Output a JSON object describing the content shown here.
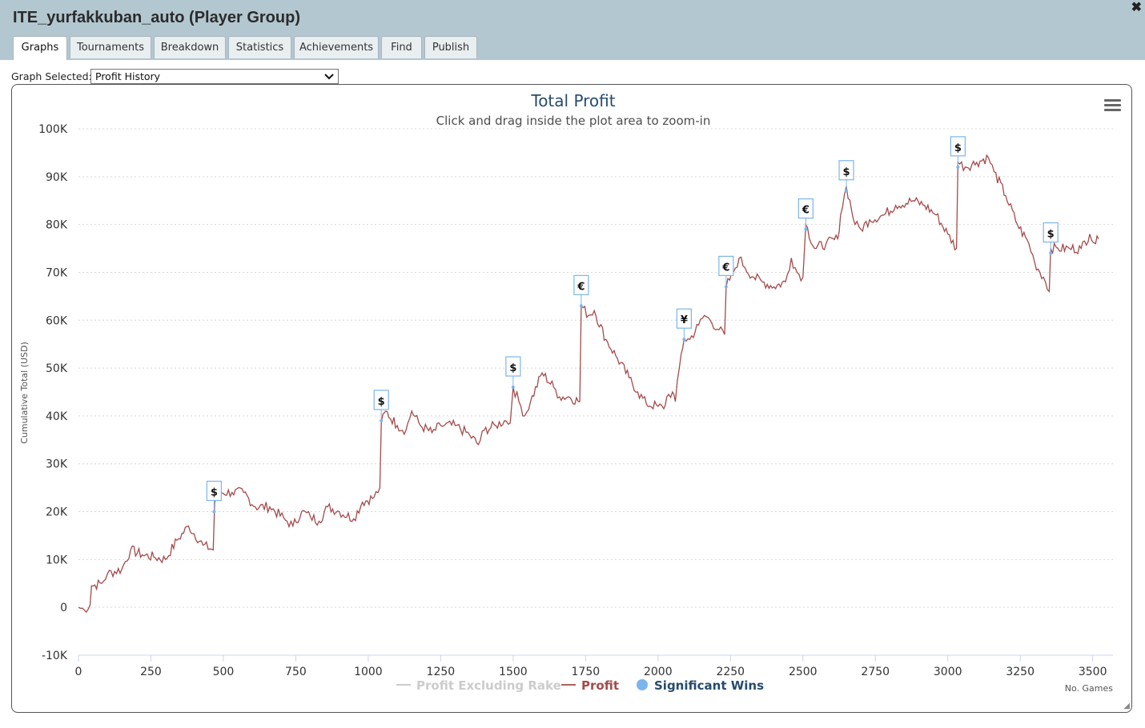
{
  "window": {
    "title": "ITE_yurfakkuban_auto (Player Group)",
    "close_symbol": "✖"
  },
  "tabs": [
    {
      "label": "Graphs",
      "active": true
    },
    {
      "label": "Tournaments"
    },
    {
      "label": "Breakdown"
    },
    {
      "label": "Statistics"
    },
    {
      "label": "Achievements"
    },
    {
      "label": "Find"
    },
    {
      "label": "Publish"
    }
  ],
  "graph_selector": {
    "label": "Graph Selected:",
    "value": "Profit History"
  },
  "menu_icon": "hamburger-menu-icon",
  "chart_data": {
    "type": "line",
    "title": "Total Profit",
    "subtitle": "Click and drag inside the plot area to zoom-in",
    "xlabel": "No. Games",
    "ylabel": "Cumulative Total (USD)",
    "xlim": [
      0,
      3520
    ],
    "ylim": [
      -10000,
      100000
    ],
    "x_ticks": [
      "0",
      "250",
      "500",
      "750",
      "1000",
      "1250",
      "1500",
      "1750",
      "2000",
      "2250",
      "2500",
      "2750",
      "3000",
      "3250",
      "3500"
    ],
    "y_ticks": [
      "-10K",
      "0",
      "10K",
      "20K",
      "30K",
      "40K",
      "50K",
      "60K",
      "70K",
      "80K",
      "90K",
      "100K"
    ],
    "grid": "horizontal-dotted",
    "legend_position": "bottom-center",
    "legend": [
      {
        "name": "Profit Excluding Rake",
        "visible": false,
        "color": "#cccccc"
      },
      {
        "name": "Profit",
        "visible": true,
        "color": "#b05f5f"
      },
      {
        "name": "Significant Wins",
        "visible": true,
        "color": "#7cb5ec"
      }
    ],
    "series": [
      {
        "name": "Profit",
        "color": "#a44a4a",
        "points": [
          [
            0,
            0
          ],
          [
            20,
            -500
          ],
          [
            40,
            500
          ],
          [
            45,
            4500
          ],
          [
            80,
            5000
          ],
          [
            100,
            7000
          ],
          [
            150,
            8000
          ],
          [
            180,
            12000
          ],
          [
            220,
            11000
          ],
          [
            260,
            10500
          ],
          [
            300,
            10000
          ],
          [
            340,
            14000
          ],
          [
            380,
            17000
          ],
          [
            430,
            13000
          ],
          [
            465,
            12000
          ],
          [
            470,
            22000
          ],
          [
            480,
            24000
          ],
          [
            530,
            24000
          ],
          [
            570,
            24000
          ],
          [
            610,
            21000
          ],
          [
            660,
            21000
          ],
          [
            720,
            18000
          ],
          [
            740,
            17000
          ],
          [
            770,
            20000
          ],
          [
            800,
            19000
          ],
          [
            830,
            18000
          ],
          [
            860,
            21000
          ],
          [
            900,
            20000
          ],
          [
            950,
            18500
          ],
          [
            980,
            22000
          ],
          [
            1020,
            23000
          ],
          [
            1040,
            25000
          ],
          [
            1045,
            38500
          ],
          [
            1060,
            41000
          ],
          [
            1100,
            38000
          ],
          [
            1130,
            37000
          ],
          [
            1150,
            41000
          ],
          [
            1180,
            38000
          ],
          [
            1220,
            36500
          ],
          [
            1250,
            38000
          ],
          [
            1300,
            38000
          ],
          [
            1350,
            36000
          ],
          [
            1380,
            34000
          ],
          [
            1400,
            37000
          ],
          [
            1440,
            38000
          ],
          [
            1470,
            39000
          ],
          [
            1490,
            38500
          ],
          [
            1500,
            46000
          ],
          [
            1520,
            43000
          ],
          [
            1540,
            40000
          ],
          [
            1560,
            43000
          ],
          [
            1600,
            49000
          ],
          [
            1640,
            46000
          ],
          [
            1660,
            44000
          ],
          [
            1690,
            44000
          ],
          [
            1730,
            43000
          ],
          [
            1735,
            63000
          ],
          [
            1760,
            61000
          ],
          [
            1780,
            62000
          ],
          [
            1820,
            56000
          ],
          [
            1860,
            52000
          ],
          [
            1900,
            48000
          ],
          [
            1930,
            45000
          ],
          [
            1960,
            42500
          ],
          [
            2000,
            42000
          ],
          [
            2020,
            41500
          ],
          [
            2030,
            44000
          ],
          [
            2050,
            45000
          ],
          [
            2060,
            43000
          ],
          [
            2080,
            53000
          ],
          [
            2090,
            56000
          ],
          [
            2110,
            56000
          ],
          [
            2140,
            59000
          ],
          [
            2160,
            61000
          ],
          [
            2180,
            60000
          ],
          [
            2210,
            58000
          ],
          [
            2230,
            57000
          ],
          [
            2235,
            67000
          ],
          [
            2260,
            70000
          ],
          [
            2280,
            73000
          ],
          [
            2300,
            71000
          ],
          [
            2330,
            69000
          ],
          [
            2360,
            68000
          ],
          [
            2400,
            67000
          ],
          [
            2440,
            68000
          ],
          [
            2460,
            73000
          ],
          [
            2480,
            70000
          ],
          [
            2500,
            69000
          ],
          [
            2510,
            80000
          ],
          [
            2540,
            75000
          ],
          [
            2580,
            76000
          ],
          [
            2620,
            77000
          ],
          [
            2630,
            82000
          ],
          [
            2650,
            88000
          ],
          [
            2680,
            80000
          ],
          [
            2700,
            79000
          ],
          [
            2730,
            81000
          ],
          [
            2780,
            82000
          ],
          [
            2820,
            84000
          ],
          [
            2880,
            85000
          ],
          [
            2920,
            84000
          ],
          [
            2960,
            82000
          ],
          [
            3000,
            78000
          ],
          [
            3030,
            75000
          ],
          [
            3035,
            93000
          ],
          [
            3060,
            92000
          ],
          [
            3100,
            93000
          ],
          [
            3140,
            94000
          ],
          [
            3160,
            91000
          ],
          [
            3200,
            86000
          ],
          [
            3240,
            80000
          ],
          [
            3280,
            76000
          ],
          [
            3300,
            72000
          ],
          [
            3330,
            69000
          ],
          [
            3350,
            66000
          ],
          [
            3355,
            75000
          ],
          [
            3380,
            75000
          ],
          [
            3420,
            75000
          ],
          [
            3460,
            75000
          ],
          [
            3490,
            78000
          ],
          [
            3510,
            76000
          ],
          [
            3520,
            77000
          ]
        ]
      }
    ],
    "significant_wins": [
      {
        "x": 468,
        "y": 20000,
        "symbol": "$"
      },
      {
        "x": 1045,
        "y": 39000,
        "symbol": "$"
      },
      {
        "x": 1500,
        "y": 46000,
        "symbol": "$"
      },
      {
        "x": 1735,
        "y": 63000,
        "symbol": "€"
      },
      {
        "x": 2090,
        "y": 56000,
        "symbol": "¥"
      },
      {
        "x": 2235,
        "y": 67000,
        "symbol": "€"
      },
      {
        "x": 2510,
        "y": 79000,
        "symbol": "€"
      },
      {
        "x": 2650,
        "y": 87000,
        "symbol": "$"
      },
      {
        "x": 3035,
        "y": 92000,
        "symbol": "$"
      },
      {
        "x": 3355,
        "y": 74000,
        "symbol": "$"
      }
    ]
  }
}
